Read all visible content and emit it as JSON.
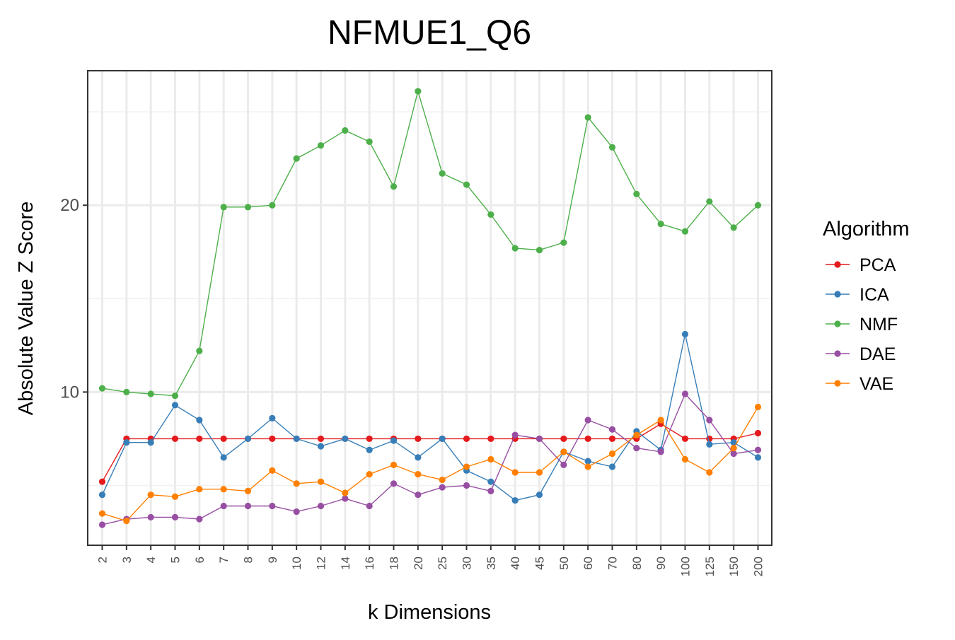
{
  "chart_data": {
    "type": "line",
    "title": "NFMUE1_Q6",
    "xlabel": "k Dimensions",
    "ylabel": "Absolute Value Z Score",
    "categories": [
      "2",
      "3",
      "4",
      "5",
      "6",
      "7",
      "8",
      "9",
      "10",
      "12",
      "14",
      "16",
      "18",
      "20",
      "25",
      "30",
      "35",
      "40",
      "45",
      "50",
      "60",
      "70",
      "80",
      "90",
      "100",
      "125",
      "150",
      "200"
    ],
    "ylim": [
      1.8,
      27.2
    ],
    "yticks": [
      10,
      20
    ],
    "grid": true,
    "legend": {
      "title": "Algorithm",
      "position": "right"
    },
    "series": [
      {
        "name": "PCA",
        "color": "#e41a1c",
        "values": [
          5.2,
          7.5,
          7.5,
          7.5,
          7.5,
          7.5,
          7.5,
          7.5,
          7.5,
          7.5,
          7.5,
          7.5,
          7.5,
          7.5,
          7.5,
          7.5,
          7.5,
          7.5,
          7.5,
          7.5,
          7.5,
          7.5,
          7.5,
          8.3,
          7.5,
          7.5,
          7.5,
          7.8
        ]
      },
      {
        "name": "ICA",
        "color": "#377eb8",
        "values": [
          4.5,
          7.3,
          7.3,
          9.3,
          8.5,
          6.5,
          7.5,
          8.6,
          7.5,
          7.1,
          7.5,
          6.9,
          7.4,
          6.5,
          7.5,
          5.8,
          5.2,
          4.2,
          4.5,
          6.8,
          6.3,
          6.0,
          7.9,
          6.9,
          13.1,
          7.2,
          7.3,
          6.5
        ]
      },
      {
        "name": "NMF",
        "color": "#4daf4a",
        "values": [
          10.2,
          10.0,
          9.9,
          9.8,
          12.2,
          19.9,
          19.9,
          20.0,
          22.5,
          23.2,
          24.0,
          23.4,
          21.0,
          26.1,
          21.7,
          21.1,
          19.5,
          17.7,
          17.6,
          18.0,
          24.7,
          23.1,
          20.6,
          19.0,
          18.6,
          20.2,
          18.8,
          20.0
        ]
      },
      {
        "name": "DAE",
        "color": "#984ea3",
        "values": [
          2.9,
          3.2,
          3.3,
          3.3,
          3.2,
          3.9,
          3.9,
          3.9,
          3.6,
          3.9,
          4.3,
          3.9,
          5.1,
          4.5,
          4.9,
          5.0,
          4.7,
          7.7,
          7.5,
          6.1,
          8.5,
          8.0,
          7.0,
          6.8,
          9.9,
          8.5,
          6.7,
          6.9
        ]
      },
      {
        "name": "VAE",
        "color": "#ff7f00",
        "values": [
          3.5,
          3.1,
          4.5,
          4.4,
          4.8,
          4.8,
          4.7,
          5.8,
          5.1,
          5.2,
          4.6,
          5.6,
          6.1,
          5.6,
          5.3,
          6.0,
          6.4,
          5.7,
          5.7,
          6.8,
          6.0,
          6.7,
          7.7,
          8.5,
          6.4,
          5.7,
          7.0,
          9.2
        ]
      }
    ]
  }
}
